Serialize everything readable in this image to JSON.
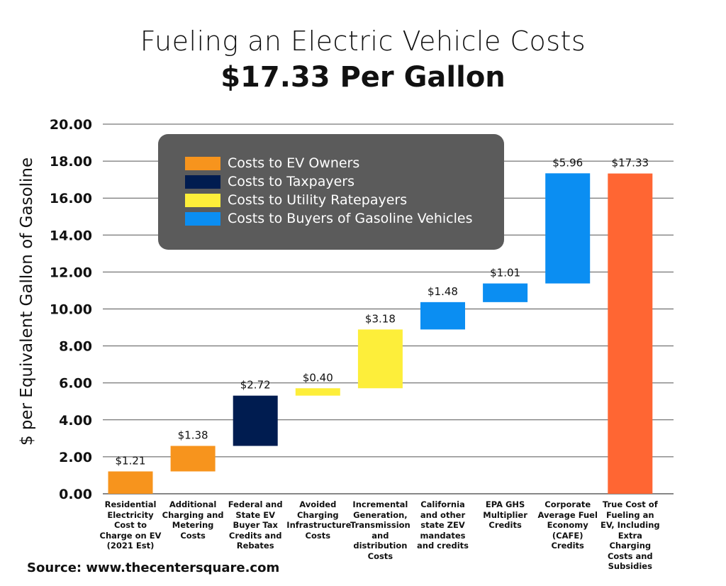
{
  "chart_data": {
    "type": "waterfall",
    "title": "Fueling an Electric Vehicle Costs",
    "subtitle": "$17.33 Per Gallon",
    "ylabel": "$ per Equivalent Gallon of Gasoline",
    "xlabel": "",
    "ylim": [
      0,
      20
    ],
    "yticks": [
      "0.00",
      "2.00",
      "4.00",
      "6.00",
      "8.00",
      "10.00",
      "12.00",
      "14.00",
      "16.00",
      "18.00",
      "20.00"
    ],
    "grid": true,
    "legend_position": "top-left",
    "categories": [
      "Residential Electricity Cost to Charge on EV (2021 Est)",
      "Additional Charging and Metering Costs",
      "Federal and State EV Buyer Tax Credits and Rebates",
      "Avoided Charging Infrastructure Costs",
      "Incremental Generation, Transmission and distribution Costs",
      "California and other state ZEV mandates and credits",
      "EPA GHS Multiplier Credits",
      "Corporate Average Fuel Economy (CAFE) Credits",
      "True Cost of Fueling an EV, Including Extra Charging Costs and Subsidies"
    ],
    "values": [
      1.21,
      1.38,
      2.72,
      0.4,
      3.18,
      1.48,
      1.01,
      5.96,
      17.33
    ],
    "data_labels": [
      "$1.21",
      "$1.38",
      "$2.72",
      "$0.40",
      "$3.18",
      "$1.48",
      "$1.01",
      "$5.96",
      "$17.33"
    ],
    "groups": [
      "owners",
      "owners",
      "taxpayers",
      "ratepayers",
      "ratepayers",
      "gas_buyers",
      "gas_buyers",
      "gas_buyers",
      "total"
    ],
    "legend": [
      {
        "key": "owners",
        "label": "Costs to EV Owners",
        "color": "#f7941d"
      },
      {
        "key": "taxpayers",
        "label": "Costs to Taxpayers",
        "color": "#001c50"
      },
      {
        "key": "ratepayers",
        "label": "Costs to Utility Ratepayers",
        "color": "#fdee3a"
      },
      {
        "key": "gas_buyers",
        "label": "Costs to Buyers of Gasoline Vehicles",
        "color": "#0b8ef2"
      }
    ],
    "total_color": "#ff6633"
  },
  "source": "Source: www.thecentersquare.com"
}
